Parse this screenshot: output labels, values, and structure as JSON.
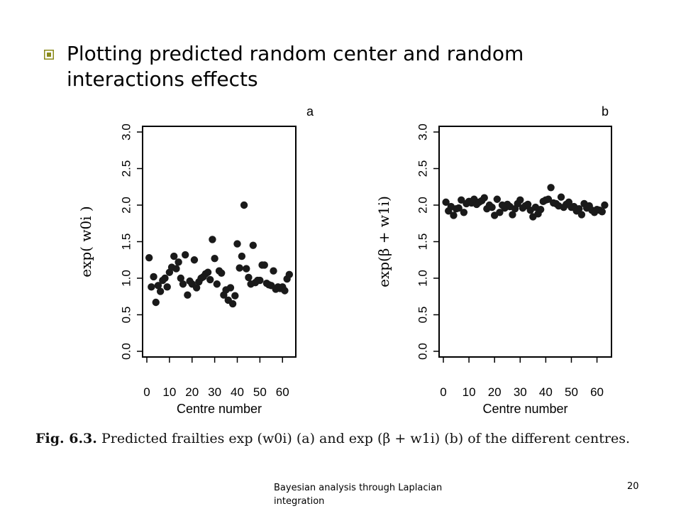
{
  "slide": {
    "title": "Plotting predicted random center and random interactions effects",
    "bullet_icon": "square-bullet-icon",
    "bullet_color": "#8a8a1a"
  },
  "caption": {
    "fig_label": "Fig. 6.3.",
    "text": "Predicted frailties exp (w0i) (a) and exp (β + w1i) (b) of the different centres."
  },
  "footer": {
    "text": "Bayesian analysis through Laplacian integration",
    "page": "20"
  },
  "chart_data": [
    {
      "type": "scatter",
      "panel": "a",
      "xlabel": "Centre number",
      "ylabel": "exp( w0i )",
      "xlim": [
        0,
        64
      ],
      "ylim": [
        0,
        3
      ],
      "x_ticks": [
        0,
        10,
        20,
        30,
        40,
        50,
        60
      ],
      "y_ticks": [
        "0.0",
        "0.5",
        "1.0",
        "1.5",
        "2.0",
        "2.5",
        "3.0"
      ],
      "grid": false,
      "x": [
        1,
        2,
        3,
        4,
        5,
        6,
        7,
        8,
        9,
        10,
        11,
        12,
        13,
        14,
        15,
        16,
        17,
        18,
        19,
        20,
        21,
        22,
        23,
        24,
        25,
        26,
        27,
        28,
        29,
        30,
        31,
        32,
        33,
        34,
        35,
        36,
        37,
        38,
        39,
        40,
        41,
        42,
        43,
        44,
        45,
        46,
        47,
        48,
        49,
        50,
        51,
        52,
        53,
        54,
        55,
        56,
        57,
        58,
        59,
        60,
        61,
        62,
        63
      ],
      "y": [
        1.28,
        0.88,
        1.02,
        0.67,
        0.9,
        0.82,
        0.97,
        1.0,
        0.88,
        1.08,
        1.15,
        1.3,
        1.13,
        1.22,
        1.0,
        0.92,
        1.32,
        0.77,
        0.96,
        0.92,
        1.25,
        0.87,
        0.95,
        1.0,
        1.02,
        1.06,
        1.08,
        0.98,
        1.53,
        1.27,
        0.92,
        1.1,
        1.07,
        0.77,
        0.84,
        0.7,
        0.87,
        0.65,
        0.76,
        1.47,
        1.14,
        1.3,
        2.0,
        1.13,
        1.01,
        0.92,
        1.45,
        0.94,
        0.97,
        0.97,
        1.18,
        1.18,
        0.93,
        0.91,
        0.9,
        1.1,
        0.85,
        0.88,
        0.86,
        0.88,
        0.83,
        0.99,
        1.05
      ]
    },
    {
      "type": "scatter",
      "panel": "b",
      "xlabel": "Centre number",
      "ylabel": "exp(β + w1i)",
      "xlim": [
        0,
        64
      ],
      "ylim": [
        0,
        3
      ],
      "x_ticks": [
        0,
        10,
        20,
        30,
        40,
        50,
        60
      ],
      "y_ticks": [
        "0.0",
        "0.5",
        "1.0",
        "1.5",
        "2.0",
        "2.5",
        "3.0"
      ],
      "grid": false,
      "x": [
        1,
        2,
        3,
        4,
        5,
        6,
        7,
        8,
        9,
        10,
        11,
        12,
        13,
        14,
        15,
        16,
        17,
        18,
        19,
        20,
        21,
        22,
        23,
        24,
        25,
        26,
        27,
        28,
        29,
        30,
        31,
        32,
        33,
        34,
        35,
        36,
        37,
        38,
        39,
        40,
        41,
        42,
        43,
        44,
        45,
        46,
        47,
        48,
        49,
        50,
        51,
        52,
        53,
        54,
        55,
        56,
        57,
        58,
        59,
        60,
        61,
        62,
        63
      ],
      "y": [
        2.04,
        1.92,
        1.98,
        1.86,
        1.95,
        1.96,
        2.07,
        1.9,
        2.02,
        2.05,
        2.03,
        2.08,
        2.01,
        2.04,
        2.06,
        2.1,
        1.95,
        2.0,
        1.97,
        1.86,
        2.08,
        1.9,
        2.0,
        1.96,
        2.01,
        1.98,
        1.87,
        1.95,
        2.02,
        2.07,
        1.96,
        1.99,
        2.01,
        1.93,
        1.84,
        1.97,
        1.88,
        1.94,
        2.05,
        2.07,
        2.08,
        2.24,
        2.03,
        2.02,
        1.99,
        2.11,
        1.97,
        2.01,
        2.04,
        1.97,
        1.98,
        1.92,
        1.95,
        1.87,
        2.02,
        1.96,
        1.99,
        1.93,
        1.9,
        1.94,
        1.93,
        1.91,
        2.0
      ]
    }
  ]
}
